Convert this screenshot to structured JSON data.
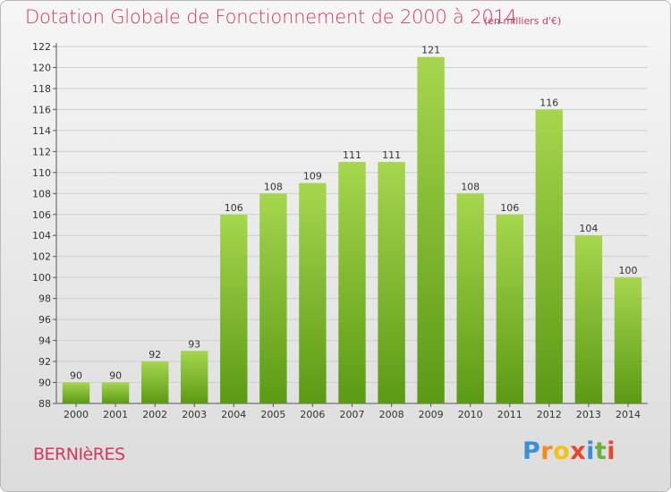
{
  "header": {
    "title": "Dotation Globale de Fonctionnement de 2000 à 2014",
    "subtitle": "(en milliers d'€)"
  },
  "footer": {
    "commune": "BERNIèRES",
    "brand_letters": [
      "P",
      "r",
      "o",
      "x",
      "i",
      "t",
      "i"
    ],
    "brand_colors": [
      "#3a8fd6",
      "#f08a1c",
      "#f4c20f",
      "#e8452c",
      "#3a8fd6",
      "#6ab23a",
      "#e8452c"
    ]
  },
  "colors": {
    "bar_top": "#a6d64e",
    "bar_bottom": "#5c9a14",
    "grid": "#cfcfcf",
    "text": "#333333",
    "accent": "#d23a5c"
  },
  "chart_data": {
    "type": "bar",
    "title": "Dotation Globale de Fonctionnement de 2000 à 2014",
    "subtitle": "(en milliers d'€)",
    "xlabel": "",
    "ylabel": "",
    "categories": [
      "2000",
      "2001",
      "2002",
      "2003",
      "2004",
      "2005",
      "2006",
      "2007",
      "2008",
      "2009",
      "2010",
      "2011",
      "2012",
      "2013",
      "2014"
    ],
    "values": [
      90,
      90,
      92,
      93,
      106,
      108,
      109,
      111,
      111,
      121,
      108,
      106,
      116,
      104,
      100
    ],
    "ylim": [
      88,
      122
    ],
    "yticks": [
      88,
      90,
      92,
      94,
      96,
      98,
      100,
      102,
      104,
      106,
      108,
      110,
      112,
      114,
      116,
      118,
      120,
      122
    ],
    "grid": true,
    "legend": "none"
  }
}
